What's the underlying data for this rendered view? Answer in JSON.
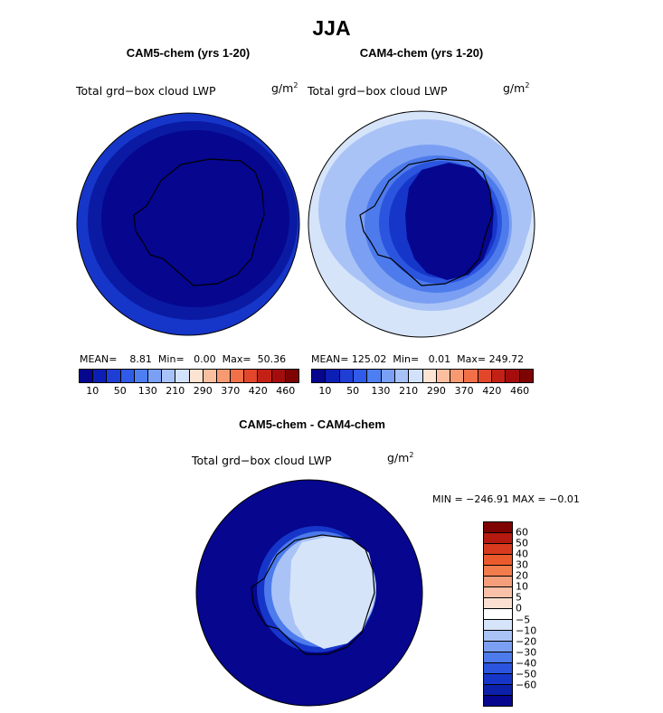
{
  "title": "JJA",
  "panels": [
    {
      "name": "CAM5-chem (yrs 1-20)",
      "field": "Total grd−box cloud LWP",
      "units_base": "g/m",
      "units_exp": "2",
      "stats": {
        "mean_label": "MEAN=",
        "mean": "8.81",
        "min_label": "Min=",
        "min": "0.00",
        "max_label": "Max=",
        "max": "50.36"
      }
    },
    {
      "name": "CAM4-chem (yrs 1-20)",
      "field": "Total grd−box cloud LWP",
      "units_base": "g/m",
      "units_exp": "2",
      "stats": {
        "mean_label": "MEAN=",
        "mean": "125.02",
        "min_label": "Min=",
        "min": "0.01",
        "max_label": "Max=",
        "max": "249.72"
      }
    }
  ],
  "difference": {
    "name": "CAM5-chem - CAM4-chem",
    "field": "Total grd−box cloud LWP",
    "units_base": "g/m",
    "units_exp": "2",
    "stats_text": "MIN = −246.91 MAX =  −0.01"
  },
  "chart_data": [
    {
      "type": "heatmap",
      "title": "CAM5-chem (yrs 1-20)",
      "projection": "south polar stereographic",
      "colorbar": {
        "colors": [
          "#06068f",
          "#0c1fb4",
          "#1f3ed6",
          "#2f5be8",
          "#4d7ff2",
          "#7aa0f5",
          "#a7c2f8",
          "#d2e2fb",
          "#fde3d2",
          "#fbbfa0",
          "#f79a72",
          "#f1704a",
          "#e2472b",
          "#c42116",
          "#a50d0d",
          "#7e0303"
        ],
        "tick_labels": [
          "10",
          "50",
          "130",
          "210",
          "290",
          "370",
          "420",
          "460"
        ]
      },
      "stats": {
        "mean": 8.81,
        "min": 0.0,
        "max": 50.36
      }
    },
    {
      "type": "heatmap",
      "title": "CAM4-chem (yrs 1-20)",
      "projection": "south polar stereographic",
      "colorbar": {
        "colors": [
          "#06068f",
          "#0c1fb4",
          "#1f3ed6",
          "#2f5be8",
          "#4d7ff2",
          "#7aa0f5",
          "#a7c2f8",
          "#d2e2fb",
          "#fde3d2",
          "#fbbfa0",
          "#f79a72",
          "#f1704a",
          "#e2472b",
          "#c42116",
          "#a50d0d",
          "#7e0303"
        ],
        "tick_labels": [
          "10",
          "50",
          "130",
          "210",
          "290",
          "370",
          "420",
          "460"
        ]
      },
      "stats": {
        "mean": 125.02,
        "min": 0.01,
        "max": 249.72
      }
    },
    {
      "type": "heatmap",
      "title": "CAM5-chem - CAM4-chem",
      "projection": "south polar stereographic",
      "colorbar": {
        "colors": [
          "#7e0303",
          "#b51a10",
          "#d83a1e",
          "#ea5a2c",
          "#f27c4c",
          "#f59e7c",
          "#f8c1a8",
          "#fbe0d2",
          "#ffffff",
          "#d6e4fa",
          "#a9c3f6",
          "#7b9ff2",
          "#4d7bec",
          "#2b55de",
          "#1636c9",
          "#0c20a9",
          "#06068f"
        ],
        "tick_labels": [
          "60",
          "50",
          "40",
          "30",
          "20",
          "10",
          "5",
          "0",
          "−5",
          "−10",
          "−20",
          "−30",
          "−40",
          "−50",
          "−60"
        ]
      },
      "stats": {
        "min": -246.91,
        "max": -0.01
      }
    }
  ]
}
